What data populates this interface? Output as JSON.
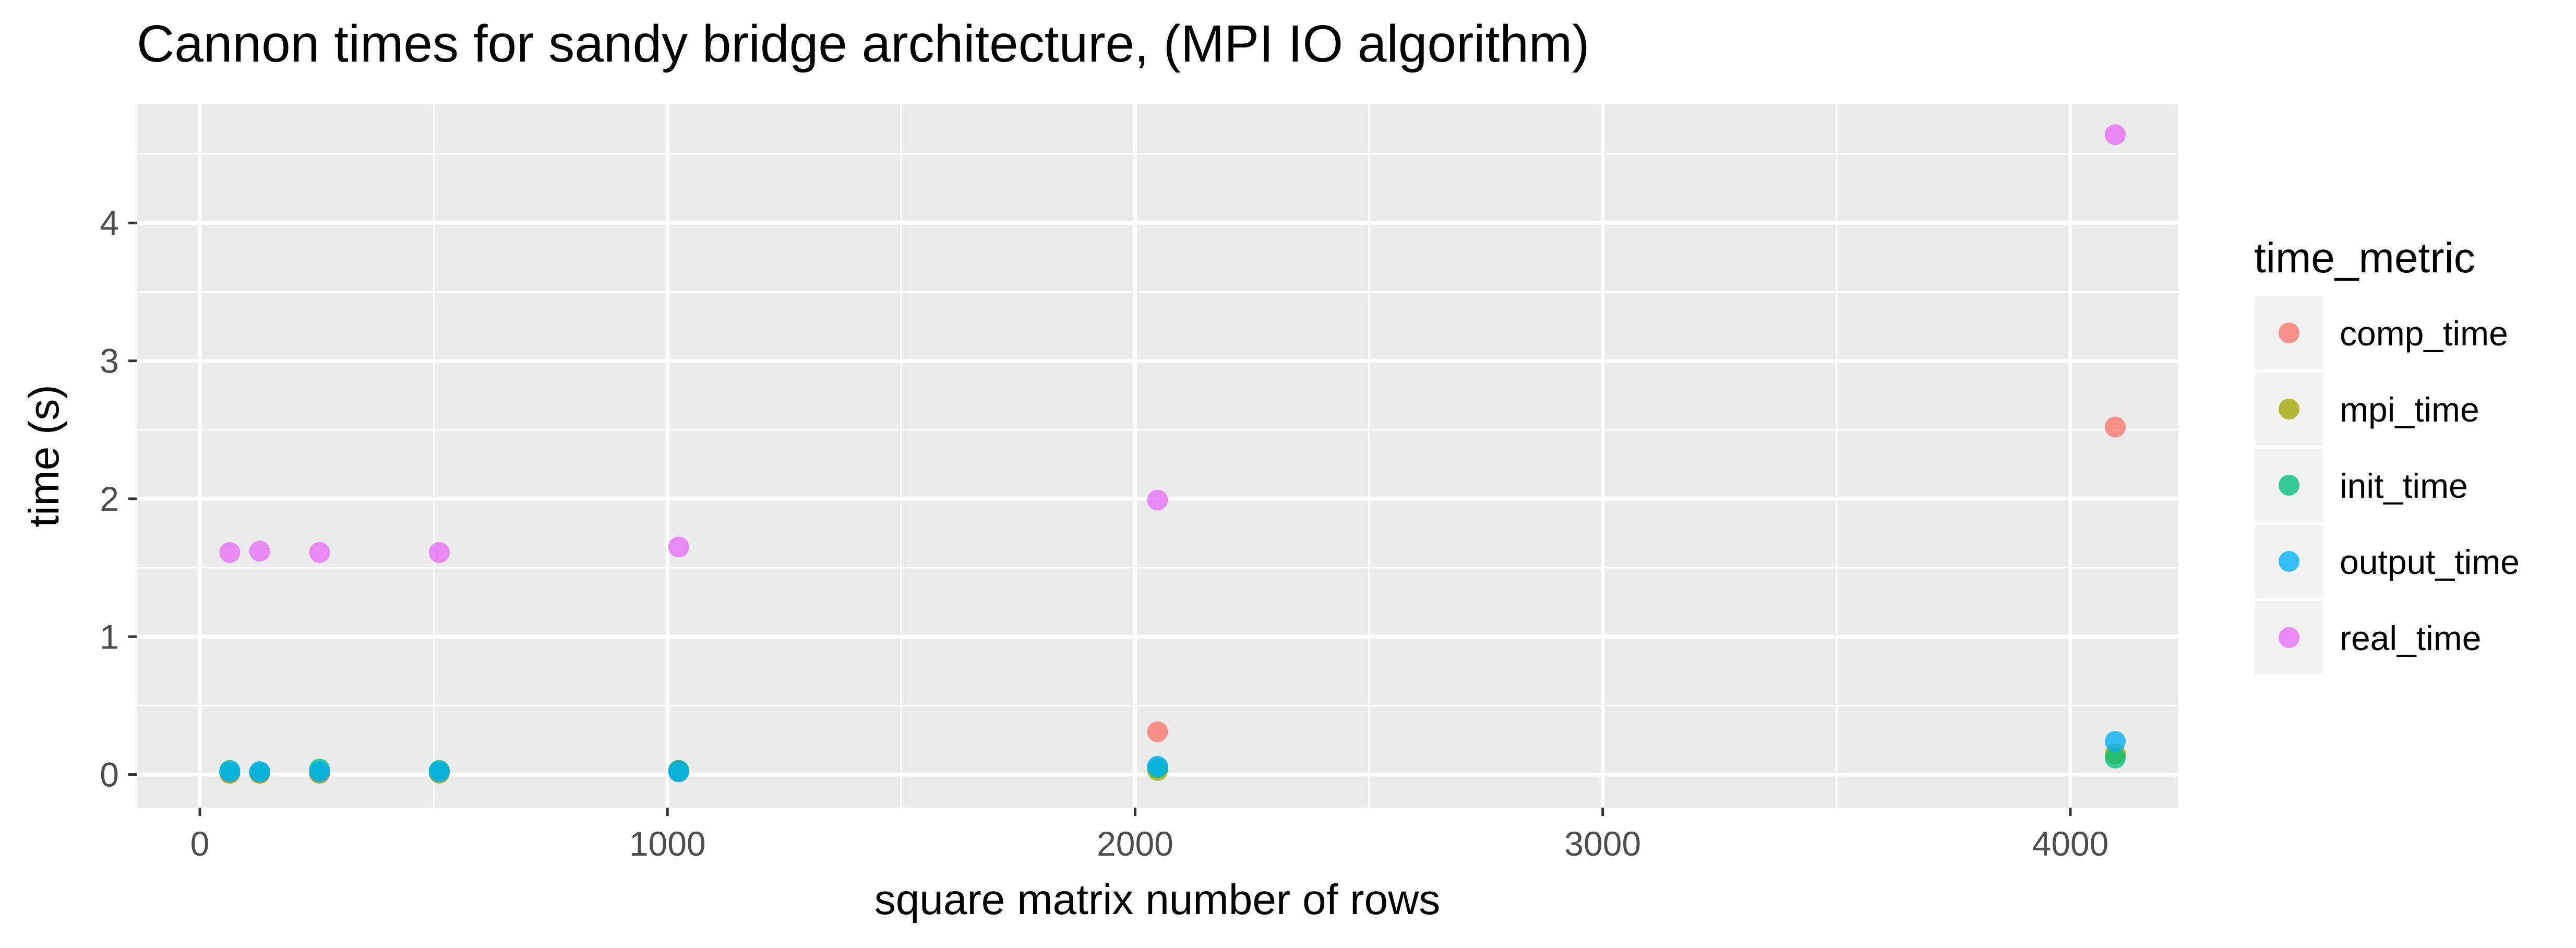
{
  "chart_data": {
    "type": "scatter",
    "title": "Cannon times for sandy bridge architecture, (MPI IO algorithm)",
    "xlabel": "square matrix number of rows",
    "ylabel": "time (s)",
    "xlim": [
      -135,
      4231
    ],
    "ylim": [
      -0.24,
      4.86
    ],
    "x_ticks": [
      0,
      1000,
      2000,
      3000,
      4000
    ],
    "x_minor_ticks": [
      500,
      1500,
      2500,
      3500
    ],
    "y_ticks": [
      0,
      1,
      2,
      3,
      4
    ],
    "y_minor_ticks": [
      0.5,
      1.5,
      2.5,
      3.5,
      4.5
    ],
    "grid": true,
    "panel_background": "#EBEBEB",
    "grid_color": "#FFFFFF",
    "legend": {
      "title": "time_metric",
      "position": "right"
    },
    "series": [
      {
        "name": "comp_time",
        "color": "#F8766D",
        "points": [
          {
            "x": 64,
            "y": 0.01
          },
          {
            "x": 128,
            "y": 0.01
          },
          {
            "x": 256,
            "y": 0.01
          },
          {
            "x": 512,
            "y": 0.02
          },
          {
            "x": 1024,
            "y": 0.03
          },
          {
            "x": 2048,
            "y": 0.31
          },
          {
            "x": 4096,
            "y": 2.52
          }
        ]
      },
      {
        "name": "mpi_time",
        "color": "#A3A500",
        "points": [
          {
            "x": 64,
            "y": 0.01
          },
          {
            "x": 128,
            "y": 0.01
          },
          {
            "x": 256,
            "y": 0.01
          },
          {
            "x": 512,
            "y": 0.01
          },
          {
            "x": 1024,
            "y": 0.02
          },
          {
            "x": 2048,
            "y": 0.03
          },
          {
            "x": 4096,
            "y": 0.15
          }
        ]
      },
      {
        "name": "init_time",
        "color": "#00BF7D",
        "points": [
          {
            "x": 64,
            "y": 0.03
          },
          {
            "x": 128,
            "y": 0.02
          },
          {
            "x": 256,
            "y": 0.04
          },
          {
            "x": 512,
            "y": 0.03
          },
          {
            "x": 1024,
            "y": 0.03
          },
          {
            "x": 2048,
            "y": 0.05
          },
          {
            "x": 4096,
            "y": 0.12
          }
        ]
      },
      {
        "name": "output_time",
        "color": "#00B0F6",
        "points": [
          {
            "x": 64,
            "y": 0.02
          },
          {
            "x": 128,
            "y": 0.02
          },
          {
            "x": 256,
            "y": 0.02
          },
          {
            "x": 512,
            "y": 0.02
          },
          {
            "x": 1024,
            "y": 0.02
          },
          {
            "x": 2048,
            "y": 0.06
          },
          {
            "x": 4096,
            "y": 0.24
          }
        ]
      },
      {
        "name": "real_time",
        "color": "#E76BF3",
        "points": [
          {
            "x": 64,
            "y": 1.61
          },
          {
            "x": 128,
            "y": 1.62
          },
          {
            "x": 256,
            "y": 1.61
          },
          {
            "x": 512,
            "y": 1.61
          },
          {
            "x": 1024,
            "y": 1.65
          },
          {
            "x": 2048,
            "y": 1.99
          },
          {
            "x": 4096,
            "y": 4.64
          }
        ]
      }
    ]
  }
}
